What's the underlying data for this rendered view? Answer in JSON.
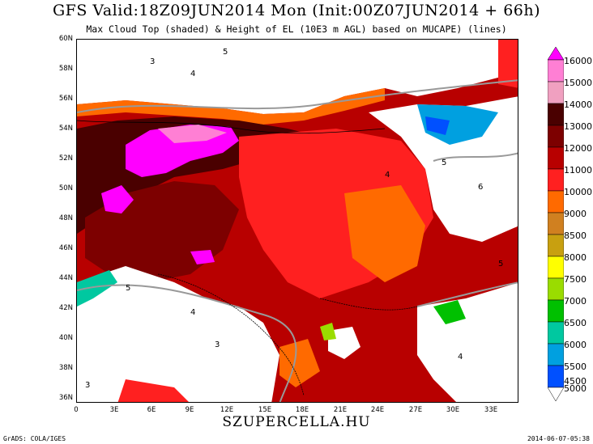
{
  "header": {
    "title": "GFS Valid:18Z09JUN2014 Mon (Init:00Z07JUN2014 + 66h)",
    "subtitle": "Max Cloud Top (shaded) & Height of EL (10E3 m AGL) based on MUCAPE) (lines)"
  },
  "axes": {
    "lat_labels": [
      "60N",
      "58N",
      "56N",
      "54N",
      "52N",
      "50N",
      "48N",
      "46N",
      "44N",
      "42N",
      "40N",
      "38N",
      "36N"
    ],
    "lon_labels": [
      "0",
      "3E",
      "6E",
      "9E",
      "12E",
      "15E",
      "18E",
      "21E",
      "24E",
      "27E",
      "30E",
      "33E"
    ]
  },
  "legend": {
    "levels": [
      "16000",
      "15000",
      "14000",
      "13000",
      "12000",
      "11000",
      "10000",
      "9000",
      "8500",
      "8000",
      "7500",
      "7000",
      "6500",
      "6000",
      "5500",
      "5000",
      "4500"
    ],
    "colors": [
      "#ff00ff",
      "#ff7fd4",
      "#f0a0c0",
      "#4a0000",
      "#7d0000",
      "#b80000",
      "#ff2020",
      "#ff6a00",
      "#d08020",
      "#c8a010",
      "#ffff00",
      "#9adc00",
      "#00c000",
      "#00c8a0",
      "#00a0e0",
      "#0050ff",
      "#0000c8"
    ]
  },
  "contour_labels": [
    "3",
    "4",
    "5",
    "6"
  ],
  "footer": {
    "watermark": "SZUPERCELLA.HU",
    "left": "GrADS: COLA/IGES",
    "right": "2014-06-07-05:38"
  }
}
